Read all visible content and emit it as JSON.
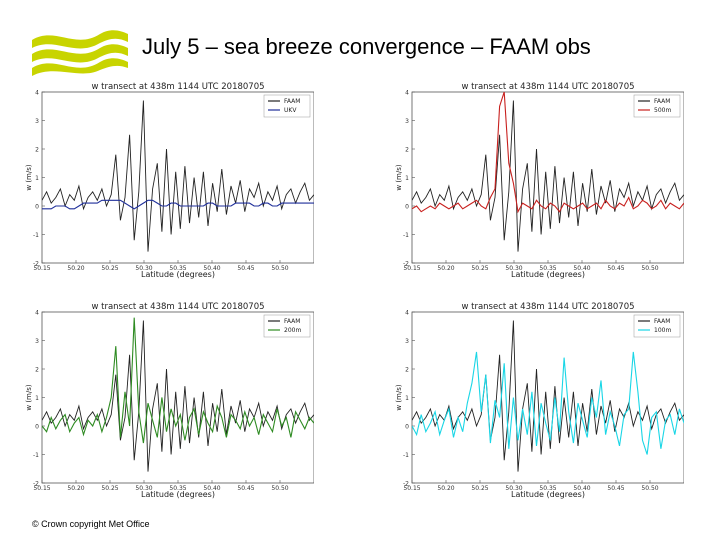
{
  "slide": {
    "title": "July 5 – sea breeze convergence – FAAM obs",
    "footer": "© Crown copyright   Met Office",
    "logo_color": "#c8d400"
  },
  "chart_data": [
    {
      "type": "line",
      "title": "w transect at 438m 1144 UTC 20180705",
      "xlabel": "Latitude (degrees)",
      "ylabel": "w (m/s)",
      "xlim": [
        50.15,
        50.55
      ],
      "ylim": [
        -2,
        4
      ],
      "xticks": [
        "50.15",
        "50.20",
        "50.25",
        "50.30",
        "50.35",
        "50.40",
        "50.45",
        "50.50"
      ],
      "yticks": [
        "-2",
        "-1",
        "0",
        "1",
        "2",
        "3",
        "4"
      ],
      "legend_position": "top-right",
      "series": [
        {
          "name": "FAAM",
          "color": "#222222",
          "values": [
            0.2,
            0.5,
            0.1,
            0.3,
            0.6,
            0.0,
            0.4,
            0.2,
            0.7,
            -0.1,
            0.3,
            0.5,
            0.2,
            0.6,
            0.0,
            0.4,
            1.8,
            -0.5,
            0.3,
            2.5,
            -1.2,
            0.5,
            3.7,
            -1.6,
            0.6,
            1.5,
            -0.9,
            2.0,
            -1.0,
            1.2,
            -0.8,
            1.4,
            -0.6,
            1.0,
            -0.4,
            1.2,
            -0.7,
            0.8,
            -0.2,
            1.3,
            -0.3,
            0.7,
            0.1,
            0.9,
            -0.2,
            0.6,
            0.3,
            0.8,
            0.0,
            0.5,
            0.2,
            0.7,
            -0.1,
            0.4,
            0.6,
            0.1,
            0.5,
            0.8,
            0.2,
            0.4
          ]
        },
        {
          "name": "UKV",
          "color": "#1f2f9a",
          "values": [
            -0.1,
            -0.1,
            -0.1,
            0.0,
            0.0,
            0.0,
            -0.1,
            -0.1,
            0.0,
            0.1,
            0.1,
            0.1,
            0.1,
            0.2,
            0.2,
            0.2,
            0.2,
            0.2,
            0.1,
            0.0,
            -0.1,
            0.0,
            0.1,
            0.2,
            0.2,
            0.1,
            0.0,
            0.0,
            0.1,
            0.1,
            0.0,
            0.0,
            0.0,
            0.0,
            0.0,
            0.0,
            0.1,
            0.1,
            0.0,
            0.0,
            0.0,
            0.0,
            0.1,
            0.1,
            0.1,
            0.1,
            0.0,
            0.0,
            0.1,
            0.1,
            0.0,
            0.0,
            0.1,
            0.1,
            0.1,
            0.1,
            0.1,
            0.1,
            0.1,
            0.1
          ]
        }
      ]
    },
    {
      "type": "line",
      "title": "w transect at 438m 1144 UTC 20180705",
      "xlabel": "Latitude (degrees)",
      "ylabel": "w (m/s)",
      "xlim": [
        50.15,
        50.55
      ],
      "ylim": [
        -2,
        4
      ],
      "xticks": [
        "50.15",
        "50.20",
        "50.25",
        "50.30",
        "50.35",
        "50.40",
        "50.45",
        "50.50"
      ],
      "yticks": [
        "-2",
        "-1",
        "0",
        "1",
        "2",
        "3",
        "4"
      ],
      "legend_position": "top-right",
      "series": [
        {
          "name": "FAAM",
          "color": "#222222",
          "values": [
            0.2,
            0.5,
            0.1,
            0.3,
            0.6,
            0.0,
            0.4,
            0.2,
            0.7,
            -0.1,
            0.3,
            0.5,
            0.2,
            0.6,
            0.0,
            0.4,
            1.8,
            -0.5,
            0.3,
            2.5,
            -1.2,
            0.5,
            3.7,
            -1.6,
            0.6,
            1.5,
            -0.9,
            2.0,
            -1.0,
            1.2,
            -0.8,
            1.4,
            -0.6,
            1.0,
            -0.4,
            1.2,
            -0.7,
            0.8,
            -0.2,
            1.3,
            -0.3,
            0.7,
            0.1,
            0.9,
            -0.2,
            0.6,
            0.3,
            0.8,
            0.0,
            0.5,
            0.2,
            0.7,
            -0.1,
            0.4,
            0.6,
            0.1,
            0.5,
            0.8,
            0.2,
            0.4
          ]
        },
        {
          "name": "500m",
          "color": "#c8201e",
          "values": [
            -0.1,
            0.0,
            -0.2,
            -0.1,
            0.0,
            -0.1,
            0.1,
            0.0,
            -0.1,
            0.0,
            0.1,
            -0.1,
            0.0,
            0.1,
            0.2,
            0.0,
            -0.1,
            0.3,
            0.6,
            3.5,
            4.0,
            1.5,
            0.8,
            -0.2,
            0.1,
            0.0,
            -0.1,
            0.2,
            0.0,
            -0.1,
            0.1,
            0.0,
            -0.2,
            0.1,
            0.0,
            -0.1,
            0.0,
            0.1,
            -0.1,
            0.0,
            0.1,
            -0.1,
            0.2,
            0.0,
            -0.1,
            0.1,
            0.0,
            0.3,
            -0.1,
            0.0,
            0.2,
            0.1,
            -0.1,
            0.0,
            0.2,
            -0.1,
            0.1,
            0.0,
            -0.1,
            0.1
          ]
        }
      ]
    },
    {
      "type": "line",
      "title": "w transect at 438m 1144 UTC 20180705",
      "xlabel": "Latitude (degrees)",
      "ylabel": "w (m/s)",
      "xlim": [
        50.15,
        50.55
      ],
      "ylim": [
        -2,
        4
      ],
      "xticks": [
        "50.15",
        "50.20",
        "50.25",
        "50.30",
        "50.35",
        "50.40",
        "50.45",
        "50.50"
      ],
      "yticks": [
        "-2",
        "-1",
        "0",
        "1",
        "2",
        "3",
        "4"
      ],
      "legend_position": "top-right",
      "series": [
        {
          "name": "FAAM",
          "color": "#222222",
          "values": [
            0.2,
            0.5,
            0.1,
            0.3,
            0.6,
            0.0,
            0.4,
            0.2,
            0.7,
            -0.1,
            0.3,
            0.5,
            0.2,
            0.6,
            0.0,
            0.4,
            1.8,
            -0.5,
            0.3,
            2.5,
            -1.2,
            0.5,
            3.7,
            -1.6,
            0.6,
            1.5,
            -0.9,
            2.0,
            -1.0,
            1.2,
            -0.8,
            1.4,
            -0.6,
            1.0,
            -0.4,
            1.2,
            -0.7,
            0.8,
            -0.2,
            1.3,
            -0.3,
            0.7,
            0.1,
            0.9,
            -0.2,
            0.6,
            0.3,
            0.8,
            0.0,
            0.5,
            0.2,
            0.7,
            -0.1,
            0.4,
            0.6,
            0.1,
            0.5,
            0.8,
            0.2,
            0.4
          ]
        },
        {
          "name": "200m",
          "color": "#2e8b22",
          "values": [
            0.0,
            -0.2,
            0.3,
            -0.1,
            0.2,
            0.4,
            -0.2,
            0.1,
            0.3,
            -0.3,
            0.2,
            0.0,
            0.4,
            -0.2,
            0.3,
            1.0,
            2.8,
            -0.4,
            1.2,
            0.0,
            3.8,
            0.5,
            -0.6,
            0.8,
            0.2,
            -0.4,
            1.0,
            -0.2,
            0.6,
            0.0,
            0.4,
            -0.5,
            0.3,
            0.6,
            -0.3,
            0.5,
            0.1,
            -0.2,
            0.7,
            0.3,
            -0.4,
            0.4,
            0.2,
            -0.1,
            0.5,
            0.0,
            0.3,
            -0.3,
            0.4,
            0.1,
            -0.2,
            0.6,
            0.0,
            0.3,
            -0.4,
            0.5,
            0.2,
            -0.1,
            0.3,
            0.1
          ]
        }
      ]
    },
    {
      "type": "line",
      "title": "w transect at 438m 1144 UTC 20180705",
      "xlabel": "Latitude (degrees)",
      "ylabel": "w (m/s)",
      "xlim": [
        50.15,
        50.55
      ],
      "ylim": [
        -2,
        4
      ],
      "xticks": [
        "50.15",
        "50.20",
        "50.25",
        "50.30",
        "50.35",
        "50.40",
        "50.45",
        "50.50"
      ],
      "yticks": [
        "-2",
        "-1",
        "0",
        "1",
        "2",
        "3",
        "4"
      ],
      "legend_position": "top-right",
      "series": [
        {
          "name": "FAAM",
          "color": "#222222",
          "values": [
            0.2,
            0.5,
            0.1,
            0.3,
            0.6,
            0.0,
            0.4,
            0.2,
            0.7,
            -0.1,
            0.3,
            0.5,
            0.2,
            0.6,
            0.0,
            0.4,
            1.8,
            -0.5,
            0.3,
            2.5,
            -1.2,
            0.5,
            3.7,
            -1.6,
            0.6,
            1.5,
            -0.9,
            2.0,
            -1.0,
            1.2,
            -0.8,
            1.4,
            -0.6,
            1.0,
            -0.4,
            1.2,
            -0.7,
            0.8,
            -0.2,
            1.3,
            -0.3,
            0.7,
            0.1,
            0.9,
            -0.2,
            0.6,
            0.3,
            0.8,
            0.0,
            0.5,
            0.2,
            0.7,
            -0.1,
            0.4,
            0.6,
            0.1,
            0.5,
            0.8,
            0.2,
            0.4
          ]
        },
        {
          "name": "100m",
          "color": "#19d6e6",
          "values": [
            0.0,
            -0.3,
            0.4,
            -0.2,
            0.1,
            0.5,
            -0.3,
            0.2,
            0.6,
            -0.4,
            0.3,
            -0.2,
            0.8,
            1.5,
            2.6,
            0.5,
            1.8,
            -0.6,
            0.9,
            0.3,
            2.2,
            -0.8,
            1.0,
            -0.5,
            0.6,
            -0.3,
            1.2,
            -0.7,
            0.8,
            0.1,
            -0.5,
            1.0,
            -0.2,
            2.4,
            0.5,
            -0.6,
            0.8,
            0.2,
            -0.4,
            1.0,
            0.3,
            1.6,
            -0.3,
            0.5,
            0.0,
            -0.7,
            0.4,
            0.6,
            2.6,
            1.2,
            -0.5,
            -1.0,
            0.3,
            0.5,
            -0.8,
            0.2,
            0.4,
            -0.3,
            0.6,
            0.1
          ]
        }
      ]
    }
  ]
}
